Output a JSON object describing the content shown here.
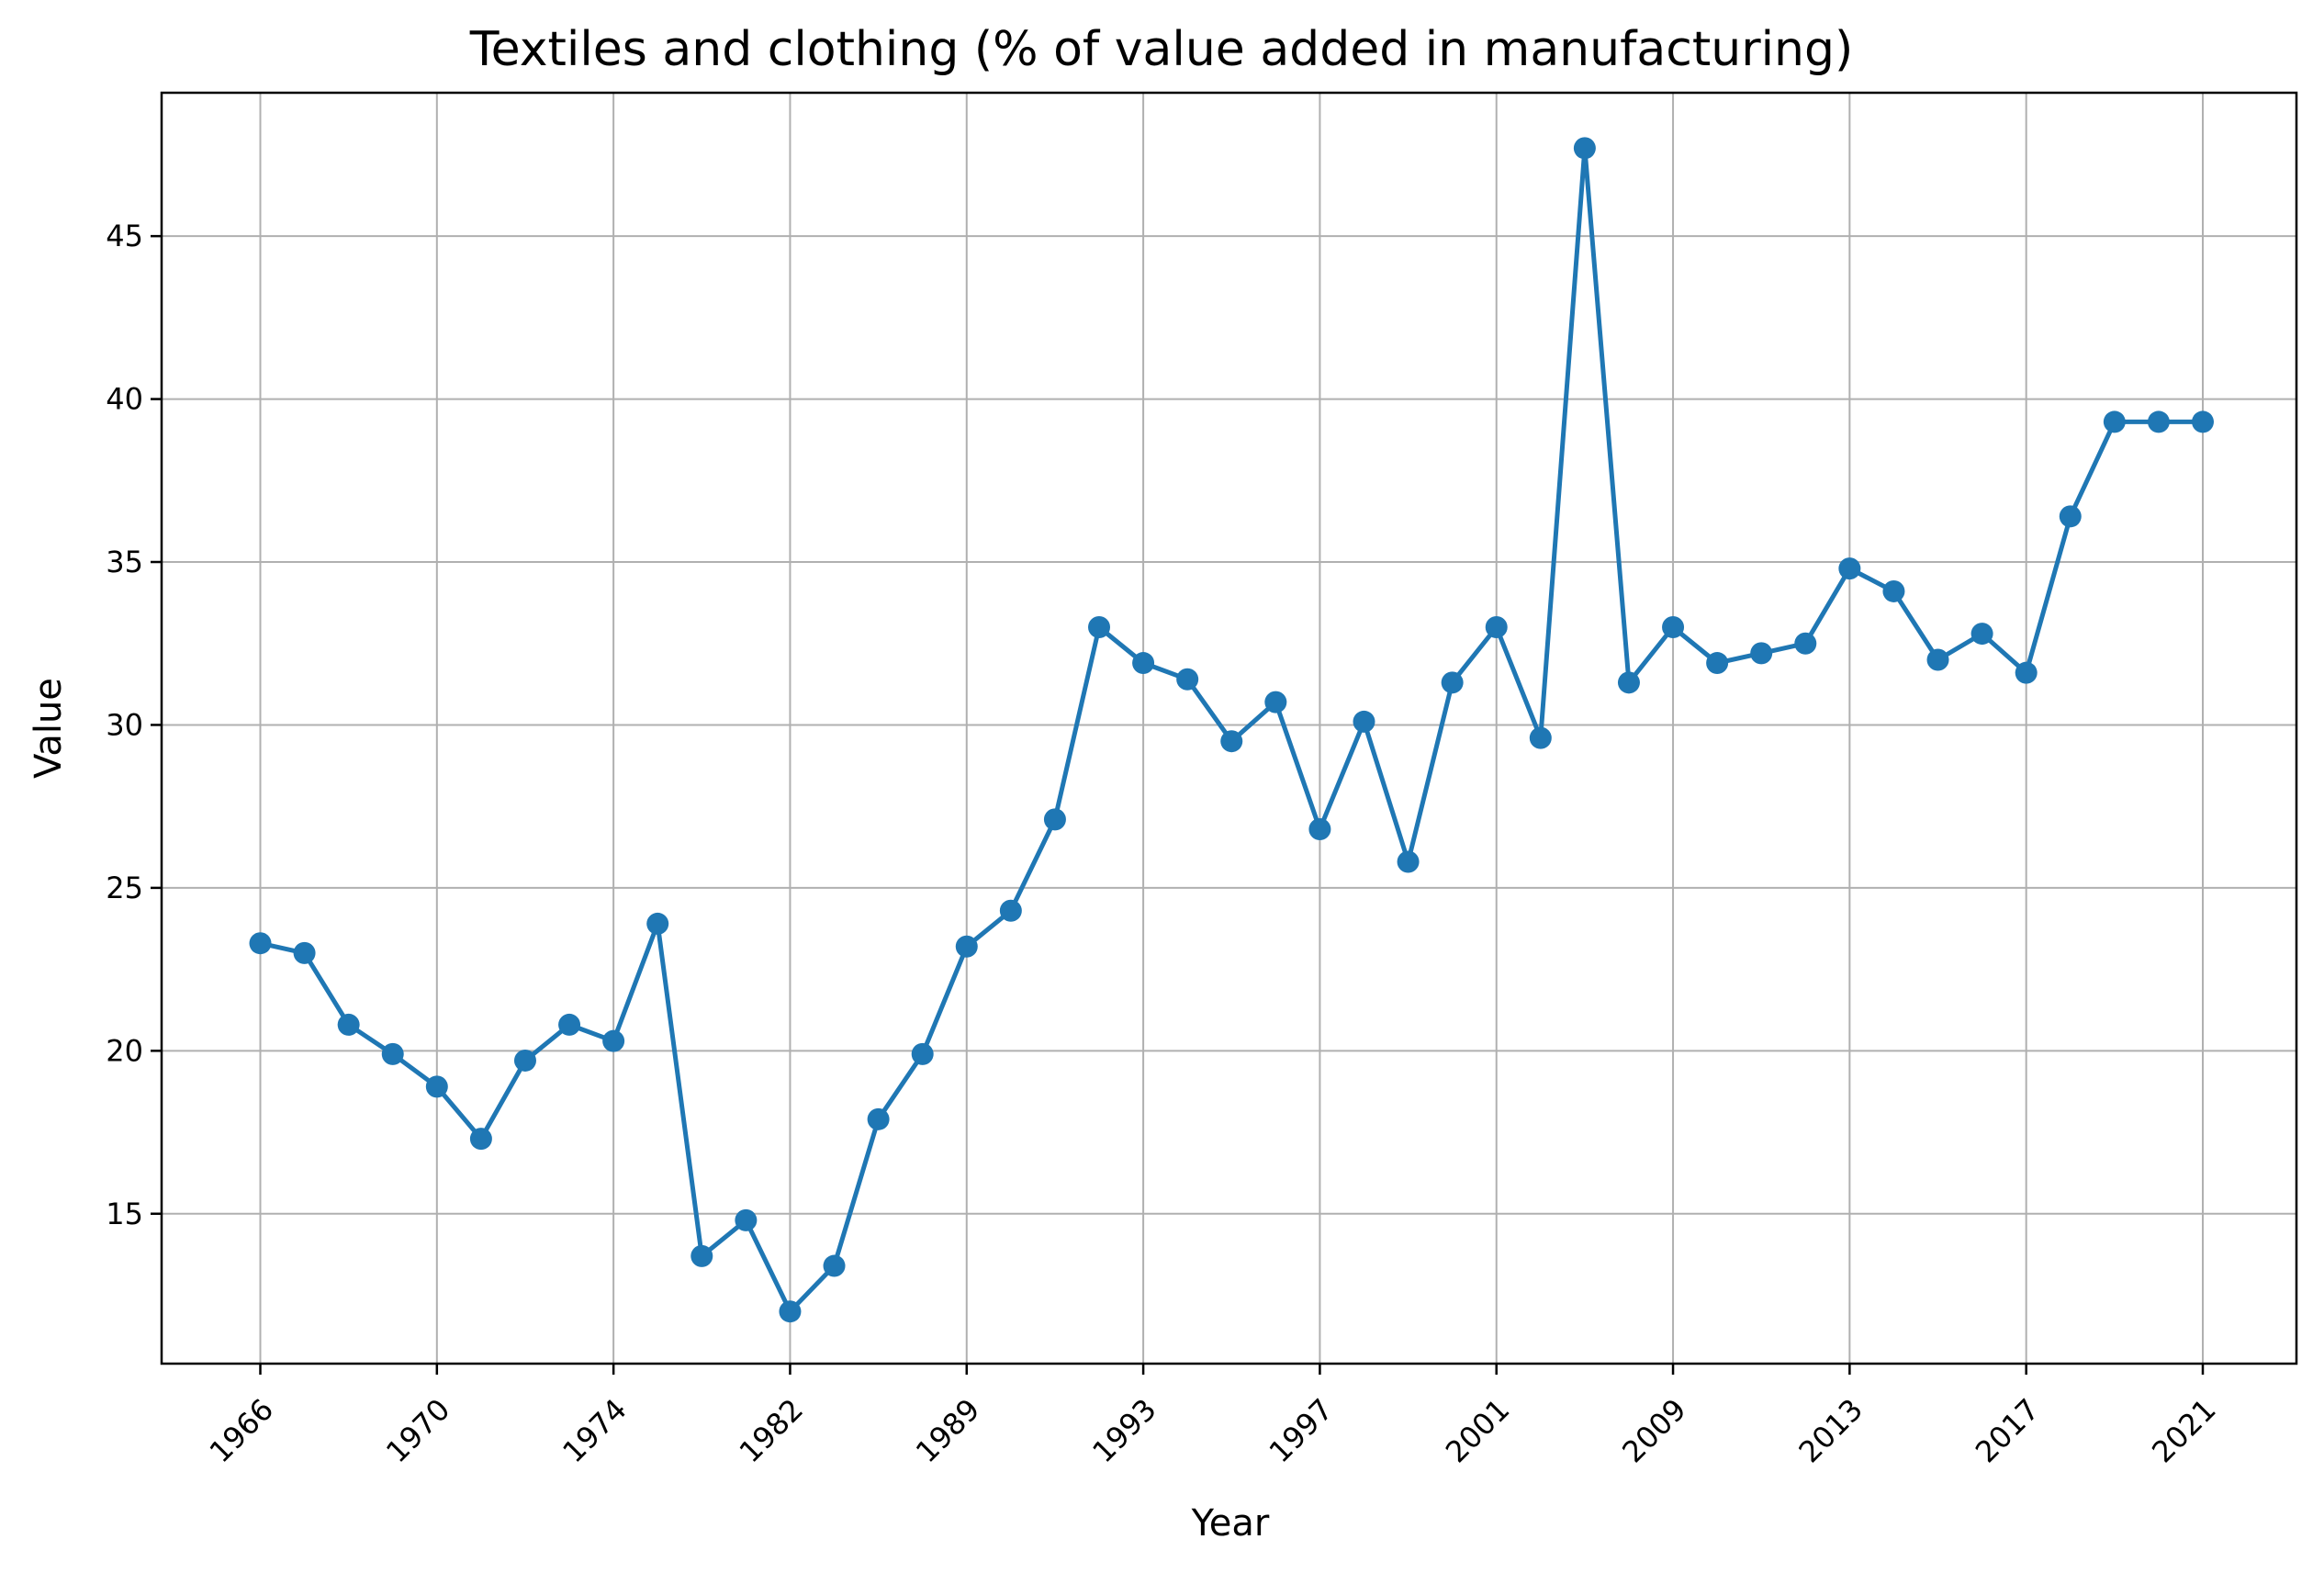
{
  "chart_data": {
    "type": "line",
    "title": "Textiles and clothing (% of value added in manufacturing)",
    "xlabel": "Year",
    "ylabel": "Value",
    "x": [
      "1966",
      "1967",
      "1968",
      "1969",
      "1970",
      "1971",
      "1972",
      "1973",
      "1974",
      "1975",
      "1980",
      "1981",
      "1982",
      "1983",
      "1985",
      "1988",
      "1989",
      "1990",
      "1991",
      "1992",
      "1993",
      "1994",
      "1995",
      "1996",
      "1997",
      "1998",
      "1999",
      "2000",
      "2001",
      "2002",
      "2003",
      "2008",
      "2009",
      "2010",
      "2011",
      "2012",
      "2013",
      "2014",
      "2015",
      "2016",
      "2017",
      "2018",
      "2019",
      "2020",
      "2021"
    ],
    "values": [
      23.3,
      23.0,
      20.8,
      19.9,
      18.9,
      17.3,
      19.7,
      20.8,
      20.3,
      23.9,
      13.7,
      14.8,
      12.0,
      13.4,
      17.9,
      19.9,
      23.2,
      24.3,
      27.1,
      33.0,
      31.9,
      31.4,
      29.5,
      30.7,
      26.8,
      30.1,
      25.8,
      31.3,
      33.0,
      29.6,
      47.7,
      31.3,
      33.0,
      31.9,
      32.2,
      32.5,
      34.8,
      34.1,
      32.0,
      32.8,
      31.6,
      36.4,
      39.3,
      39.3,
      39.3
    ],
    "x_tick_labels": [
      "1966",
      "1970",
      "1974",
      "1982",
      "1989",
      "1993",
      "1997",
      "2001",
      "2009",
      "2013",
      "2017",
      "2021"
    ],
    "y_ticks": [
      15,
      20,
      25,
      30,
      35,
      40,
      45
    ],
    "ylim": [
      10.4,
      49.4
    ],
    "grid": true,
    "line_color": "#1f77b4"
  }
}
